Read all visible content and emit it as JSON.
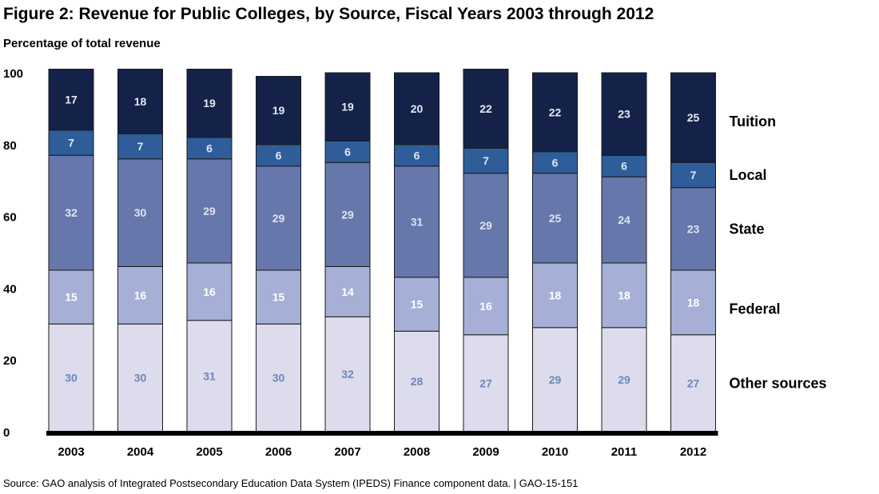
{
  "title": "Figure 2: Revenue for Public Colleges, by Source, Fiscal Years 2003 through 2012",
  "source": "Source: GAO analysis of Integrated Postsecondary Education Data System (IPEDS) Finance component data.  |  GAO-15-151",
  "chart_data": {
    "type": "bar",
    "stacked": true,
    "title": "Figure 2: Revenue for Public Colleges, by Source, Fiscal Years 2003 through 2012",
    "ylabel": "Percentage of total revenue",
    "xlabel": "",
    "ylim": [
      0,
      100
    ],
    "yticks": [
      0,
      20,
      40,
      60,
      80,
      100
    ],
    "grid": false,
    "legend": "right, labels aligned with segments",
    "categories": [
      "2003",
      "2004",
      "2005",
      "2006",
      "2007",
      "2008",
      "2009",
      "2010",
      "2011",
      "2012"
    ],
    "series": [
      {
        "name": "Other sources",
        "color": "#dcdcec",
        "label_color": "#6f87b8",
        "values": [
          30,
          30,
          31,
          30,
          32,
          28,
          27,
          29,
          29,
          27
        ]
      },
      {
        "name": "Federal",
        "color": "#a6b0d6",
        "label_color": "#ffffff",
        "values": [
          15,
          16,
          16,
          15,
          14,
          15,
          16,
          18,
          18,
          18
        ]
      },
      {
        "name": "State",
        "color": "#6677ab",
        "label_color": "#dfe3f0",
        "values": [
          32,
          30,
          29,
          29,
          29,
          31,
          29,
          25,
          24,
          23
        ]
      },
      {
        "name": "Local",
        "color": "#2f5d9a",
        "label_color": "#dfe6f2",
        "values": [
          7,
          7,
          6,
          6,
          6,
          6,
          7,
          6,
          6,
          7
        ]
      },
      {
        "name": "Tuition",
        "color": "#14224a",
        "label_color": "#e6e9f2",
        "values": [
          17,
          18,
          19,
          19,
          19,
          20,
          22,
          22,
          23,
          25
        ]
      }
    ]
  }
}
